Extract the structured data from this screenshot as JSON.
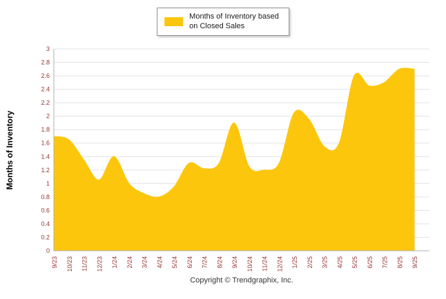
{
  "legend": {
    "line1": "Months of Inventory based",
    "line2": "on Closed Sales"
  },
  "footer": {
    "copyright": "Copyright © Trendgraphix, Inc."
  },
  "chart_data": {
    "type": "area",
    "title": "Months of Inventory based on Closed Sales",
    "xlabel": "",
    "ylabel": "Months of Inventory",
    "categories": [
      "9/23",
      "10/23",
      "11/23",
      "12/23",
      "1/24",
      "2/24",
      "3/24",
      "4/24",
      "5/24",
      "6/24",
      "7/24",
      "8/24",
      "9/24",
      "10/24",
      "11/24",
      "12/24",
      "1/25",
      "2/25",
      "3/25",
      "4/25",
      "5/25",
      "6/25",
      "7/25",
      "8/25",
      "9/25"
    ],
    "series": [
      {
        "name": "Months of Inventory based on Closed Sales",
        "values": [
          1.7,
          1.65,
          1.35,
          1.05,
          1.4,
          1.0,
          0.85,
          0.8,
          0.95,
          1.3,
          1.22,
          1.3,
          1.9,
          1.25,
          1.2,
          1.3,
          2.05,
          1.95,
          1.55,
          1.6,
          2.6,
          2.45,
          2.5,
          2.7,
          2.7
        ]
      }
    ],
    "ylim": [
      0,
      3
    ],
    "ytick_step": 0.2,
    "grid": true,
    "legend_position": "top",
    "colors": {
      "area": "#FCC60D",
      "tick_label": "#993333",
      "grid": "#e3e3e3",
      "axis": "#b0b0b0"
    }
  }
}
